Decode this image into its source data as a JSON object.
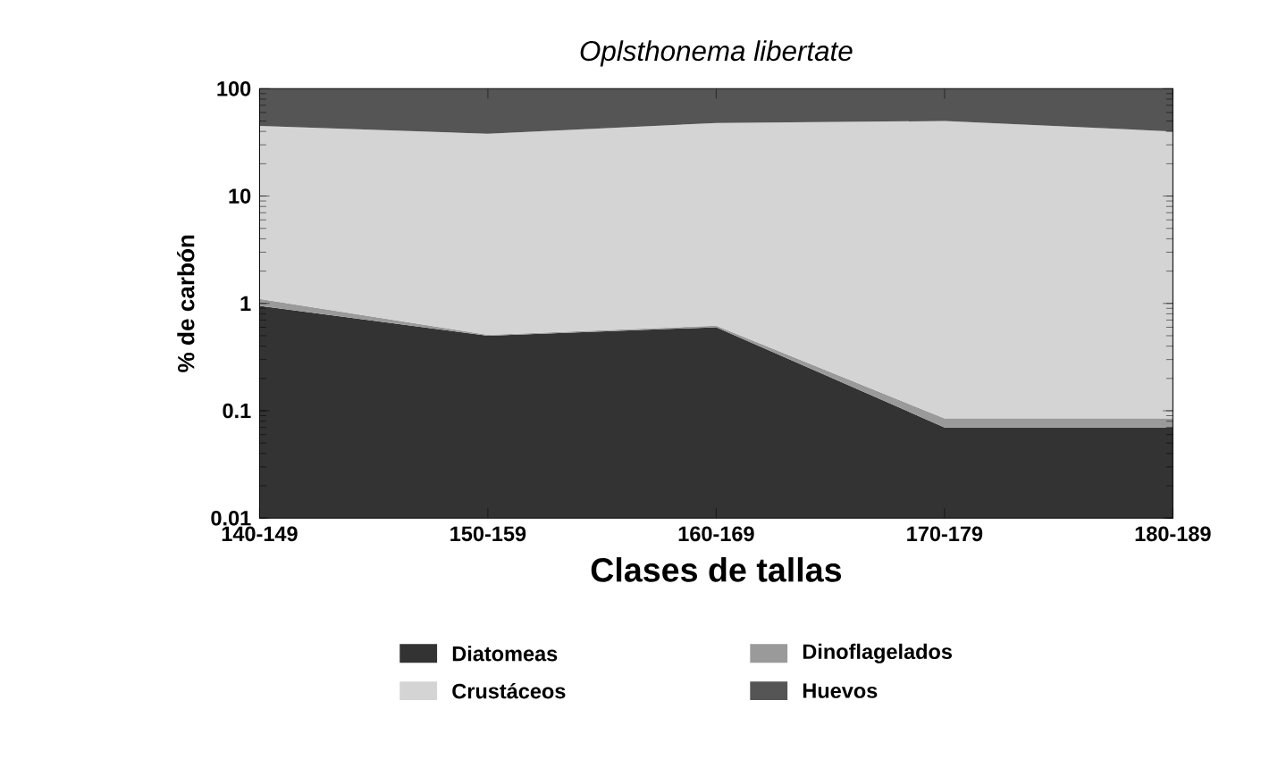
{
  "chart_data": {
    "type": "area",
    "title": "Oplsthonema libertate",
    "xlabel": "Clases de tallas",
    "ylabel": "% de carbón",
    "categories": [
      "140-149",
      "150-159",
      "160-169",
      "170-179",
      "180-189"
    ],
    "stacked": true,
    "log": "y",
    "ylim": [
      0.01,
      100
    ],
    "yticks": [
      0.01,
      0.1,
      1,
      10,
      100
    ],
    "grid": false,
    "legend": "bottom",
    "series": [
      {
        "name": "Diatomeas",
        "color": "#333333",
        "values": [
          0.95,
          0.5,
          0.6,
          0.07,
          0.07
        ]
      },
      {
        "name": "Dinoflagelados",
        "color": "#9a9a9a",
        "values": [
          0.15,
          0.01,
          0.02,
          0.015,
          0.015
        ]
      },
      {
        "name": "Crustáceos",
        "color": "#d4d4d4",
        "values": [
          43.9,
          37.5,
          47.4,
          49.9,
          39.9
        ]
      },
      {
        "name": "Huevos",
        "color": "#555555",
        "values": [
          55,
          62,
          52,
          50,
          60
        ]
      }
    ]
  }
}
